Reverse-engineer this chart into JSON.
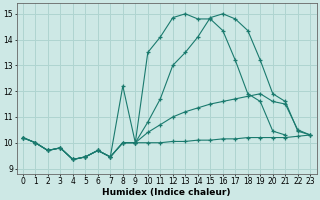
{
  "background_color": "#cde8e5",
  "grid_color": "#afd4d0",
  "line_color": "#1a7a6e",
  "xlabel": "Humidex (Indice chaleur)",
  "xlim": [
    -0.5,
    23.5
  ],
  "ylim": [
    8.8,
    15.4
  ],
  "yticks": [
    9,
    10,
    11,
    12,
    13,
    14,
    15
  ],
  "xticks": [
    0,
    1,
    2,
    3,
    4,
    5,
    6,
    7,
    8,
    9,
    10,
    11,
    12,
    13,
    14,
    15,
    16,
    17,
    18,
    19,
    20,
    21,
    22,
    23
  ],
  "series": [
    {
      "x": [
        0,
        1,
        2,
        3,
        4,
        5,
        6,
        7,
        8,
        9,
        10,
        11,
        12,
        13,
        14,
        15,
        16,
        17,
        18,
        19,
        20,
        21,
        22,
        23
      ],
      "y": [
        10.2,
        10.0,
        9.7,
        9.8,
        9.35,
        9.45,
        9.7,
        9.45,
        10.0,
        10.0,
        10.0,
        10.0,
        10.05,
        10.05,
        10.1,
        10.1,
        10.15,
        10.15,
        10.2,
        10.2,
        10.2,
        10.2,
        10.25,
        10.3
      ]
    },
    {
      "x": [
        0,
        1,
        2,
        3,
        4,
        5,
        6,
        7,
        8,
        9,
        10,
        11,
        12,
        13,
        14,
        15,
        16,
        17,
        18,
        19,
        20,
        21,
        22,
        23
      ],
      "y": [
        10.2,
        10.0,
        9.7,
        9.8,
        9.35,
        9.45,
        9.7,
        9.45,
        10.0,
        10.0,
        10.4,
        10.7,
        11.0,
        11.2,
        11.35,
        11.5,
        11.6,
        11.7,
        11.8,
        11.9,
        11.6,
        11.5,
        10.5,
        10.3
      ]
    },
    {
      "x": [
        0,
        1,
        2,
        3,
        4,
        5,
        6,
        7,
        8,
        9,
        10,
        11,
        12,
        13,
        14,
        15,
        16,
        17,
        18,
        19,
        20,
        21,
        22,
        23
      ],
      "y": [
        10.2,
        10.0,
        9.7,
        9.8,
        9.35,
        9.45,
        9.7,
        9.45,
        10.0,
        10.0,
        10.8,
        11.7,
        13.0,
        13.5,
        14.1,
        14.85,
        15.0,
        14.8,
        14.35,
        13.2,
        11.9,
        11.6,
        10.45,
        10.3
      ]
    },
    {
      "x": [
        0,
        1,
        2,
        3,
        4,
        5,
        6,
        7,
        8,
        9,
        10,
        11,
        12,
        13,
        14,
        15,
        16,
        17,
        18,
        19,
        20,
        21
      ],
      "y": [
        10.2,
        10.0,
        9.7,
        9.8,
        9.35,
        9.45,
        9.7,
        9.45,
        12.2,
        10.0,
        13.5,
        14.1,
        14.85,
        15.0,
        14.8,
        14.8,
        14.35,
        13.2,
        11.9,
        11.6,
        10.45,
        10.3
      ]
    }
  ]
}
